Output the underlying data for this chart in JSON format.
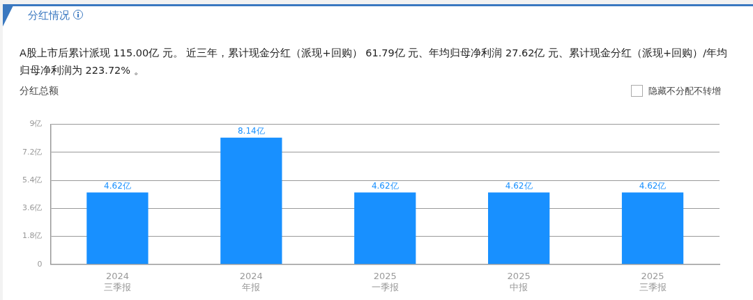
{
  "chart_data": {
    "type": "bar",
    "title": "分红情况",
    "subtitle": "A股上市后累计派现 115.00亿 元。 近三年，累计现金分红（派现+回购） 61.79亿 元、年均归母净利润 27.62亿 元、累计现金分红（派现+回购）/年均归母净利润为 223.72% 。",
    "ylabel": "分红总额",
    "annotations": [
      "隐藏不分配不转增"
    ],
    "categories": [
      "2024\n三季报",
      "2024\n年报",
      "2025\n一季报",
      "2025\n中报",
      "2025\n三季报"
    ],
    "values": [
      4.62,
      8.14,
      4.62,
      4.62,
      4.62
    ],
    "value_labels": [
      "4.62亿",
      "8.14亿",
      "4.62亿",
      "4.62亿",
      "4.62亿"
    ],
    "color": "#1890ff",
    "ylim": [
      0,
      9
    ],
    "yticks": [
      {
        "value": 0,
        "label": "0"
      },
      {
        "value": 1.8,
        "label": "1.8亿"
      },
      {
        "value": 3.6,
        "label": "3.6亿"
      },
      {
        "value": 5.4,
        "label": "5.4亿"
      },
      {
        "value": 7.2,
        "label": "7.2亿"
      },
      {
        "value": 9,
        "label": "9亿"
      }
    ],
    "grid": "y",
    "legend": false
  }
}
